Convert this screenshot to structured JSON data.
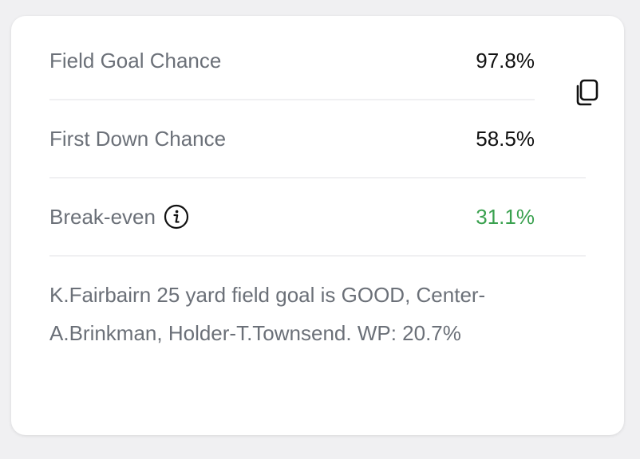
{
  "stats": {
    "field_goal": {
      "label": "Field Goal Chance",
      "value": "97.8%"
    },
    "first_down": {
      "label": "First Down Chance",
      "value": "58.5%"
    },
    "break_even": {
      "label": "Break-even",
      "value": "31.1%"
    }
  },
  "description": "K.Fairbairn 25 yard field goal is GOOD, Center-A.Brinkman, Holder-T.Townsend. WP: 20.7%",
  "icons": {
    "copy": "copy-icon",
    "info": "info-icon"
  },
  "colors": {
    "label": "#6b7078",
    "value": "#111111",
    "positive": "#3aa14f",
    "divider": "#f0f0f2"
  }
}
